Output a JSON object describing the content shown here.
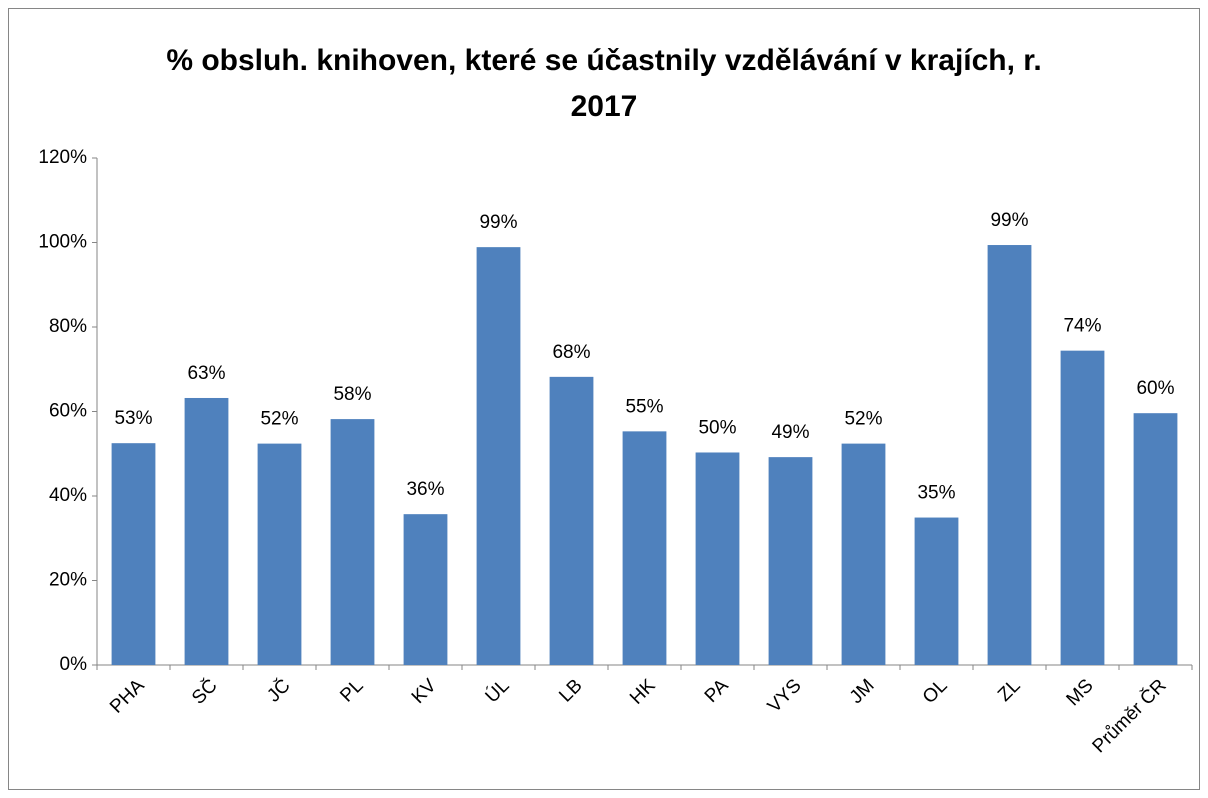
{
  "chart_data": {
    "type": "bar",
    "title": "% obsluh. knihoven, které se účastnily vzdělávání v krajích, r. 2017",
    "categories": [
      "PHA",
      "SČ",
      "JČ",
      "PL",
      "KV",
      "ÚL",
      "LB",
      "HK",
      "PA",
      "VYS",
      "JM",
      "OL",
      "ZL",
      "MS",
      "Průměr ČR"
    ],
    "values": [
      52.5,
      63.2,
      52.4,
      58.2,
      35.7,
      98.9,
      68.2,
      55.3,
      50.3,
      49.2,
      52.4,
      34.9,
      99.4,
      74.4,
      59.6
    ],
    "value_labels": [
      "53%",
      "63%",
      "52%",
      "58%",
      "36%",
      "99%",
      "68%",
      "55%",
      "50%",
      "49%",
      "52%",
      "35%",
      "99%",
      "74%",
      "60%"
    ],
    "color": "#4f81bd",
    "ylim": [
      0,
      120
    ],
    "yticks": [
      {
        "value": 0,
        "label": "0%"
      },
      {
        "value": 20,
        "label": "20%"
      },
      {
        "value": 40,
        "label": "40%"
      },
      {
        "value": 60,
        "label": "60%"
      },
      {
        "value": 80,
        "label": "80%"
      },
      {
        "value": 100,
        "label": "100%"
      },
      {
        "value": 120,
        "label": "120%"
      }
    ],
    "grid": false
  }
}
